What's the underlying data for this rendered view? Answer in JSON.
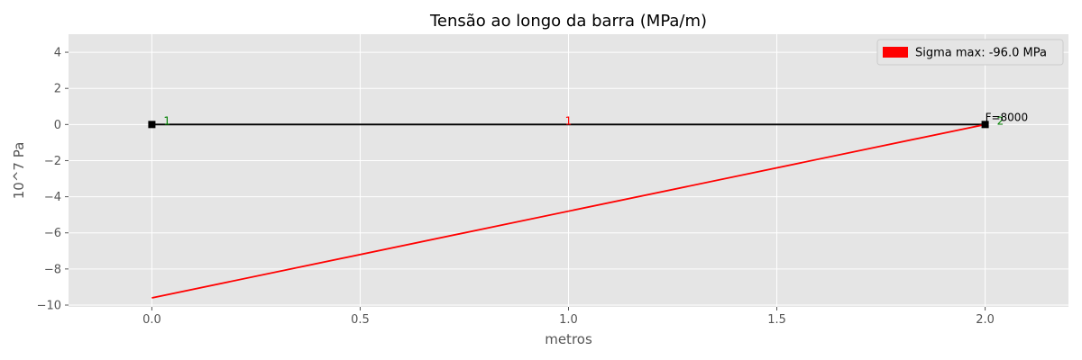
{
  "chart_data": {
    "type": "line",
    "title": "Tensão ao longo da barra (MPa/m)",
    "xlabel": "metros",
    "ylabel": "10^7 Pa",
    "xlim": [
      -0.2,
      2.2
    ],
    "ylim": [
      -10.1,
      5.0
    ],
    "xticks": [
      0.0,
      0.5,
      1.0,
      1.5,
      2.0
    ],
    "xtick_labels": [
      "0.0",
      "0.5",
      "1.0",
      "1.5",
      "2.0"
    ],
    "yticks": [
      -10,
      -8,
      -6,
      -4,
      -2,
      0,
      2,
      4
    ],
    "ytick_labels": [
      "−10",
      "−8",
      "−6",
      "−4",
      "−2",
      "0",
      "2",
      "4"
    ],
    "grid": true,
    "legend_position": "top-right",
    "legend": [
      {
        "label": "Sigma max: -96.0 MPa",
        "color": "#ff0000"
      }
    ],
    "series": [
      {
        "name": "bar",
        "color": "#000000",
        "x": [
          0.0,
          2.0
        ],
        "y": [
          0.0,
          0.0
        ]
      },
      {
        "name": "stress",
        "color": "#ff0000",
        "x": [
          0.0,
          2.0
        ],
        "y": [
          -9.6,
          0.0
        ]
      }
    ],
    "nodes": [
      {
        "x": 0.0,
        "y": 0.0,
        "label": "1",
        "color": "#008000"
      },
      {
        "x": 2.0,
        "y": 0.0,
        "label": "2",
        "color": "#008000"
      }
    ],
    "elements": [
      {
        "x": 1.0,
        "y": 0.0,
        "label": "1",
        "color": "#ff0000"
      }
    ],
    "annotations": [
      {
        "x": 2.0,
        "y": 0.0,
        "text": "F=8000",
        "color": "#000000"
      }
    ],
    "colors": {
      "background": "#e5e5e5",
      "grid": "#ffffff"
    }
  }
}
